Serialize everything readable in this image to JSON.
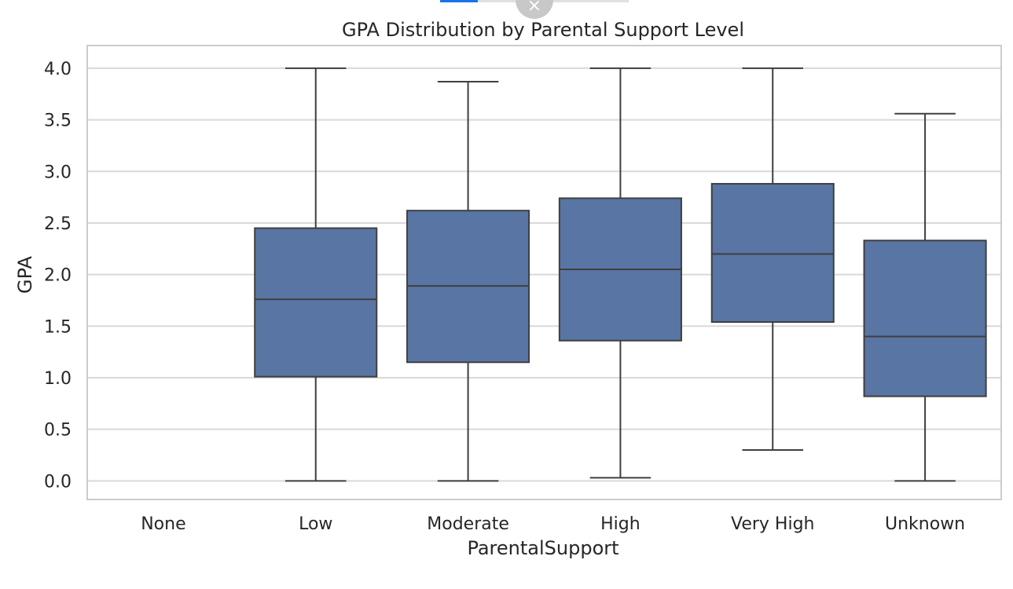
{
  "overlay": {
    "close_glyph": "×",
    "accent": "#1a73e8"
  },
  "chart_data": {
    "type": "box",
    "title": "GPA Distribution by Parental Support Level",
    "xlabel": "ParentalSupport",
    "ylabel": "GPA",
    "ylim": [
      -0.18,
      4.22
    ],
    "yticks": [
      0.0,
      0.5,
      1.0,
      1.5,
      2.0,
      2.5,
      3.0,
      3.5,
      4.0
    ],
    "ytick_labels": [
      "0.0",
      "0.5",
      "1.0",
      "1.5",
      "2.0",
      "2.5",
      "3.0",
      "3.5",
      "4.0"
    ],
    "grid": true,
    "box_color": "#5975a4",
    "line_color": "#3f3f3f",
    "categories": [
      "None",
      "Low",
      "Moderate",
      "High",
      "Very High",
      "Unknown"
    ],
    "boxes": [
      null,
      {
        "whisker_low": 0.0,
        "q1": 1.01,
        "median": 1.76,
        "q3": 2.45,
        "whisker_high": 4.0
      },
      {
        "whisker_low": 0.0,
        "q1": 1.15,
        "median": 1.89,
        "q3": 2.62,
        "whisker_high": 3.87
      },
      {
        "whisker_low": 0.03,
        "q1": 1.36,
        "median": 2.05,
        "q3": 2.74,
        "whisker_high": 4.0
      },
      {
        "whisker_low": 0.3,
        "q1": 1.54,
        "median": 2.2,
        "q3": 2.88,
        "whisker_high": 4.0
      },
      {
        "whisker_low": 0.0,
        "q1": 0.82,
        "median": 1.4,
        "q3": 2.33,
        "whisker_high": 3.56
      }
    ]
  }
}
